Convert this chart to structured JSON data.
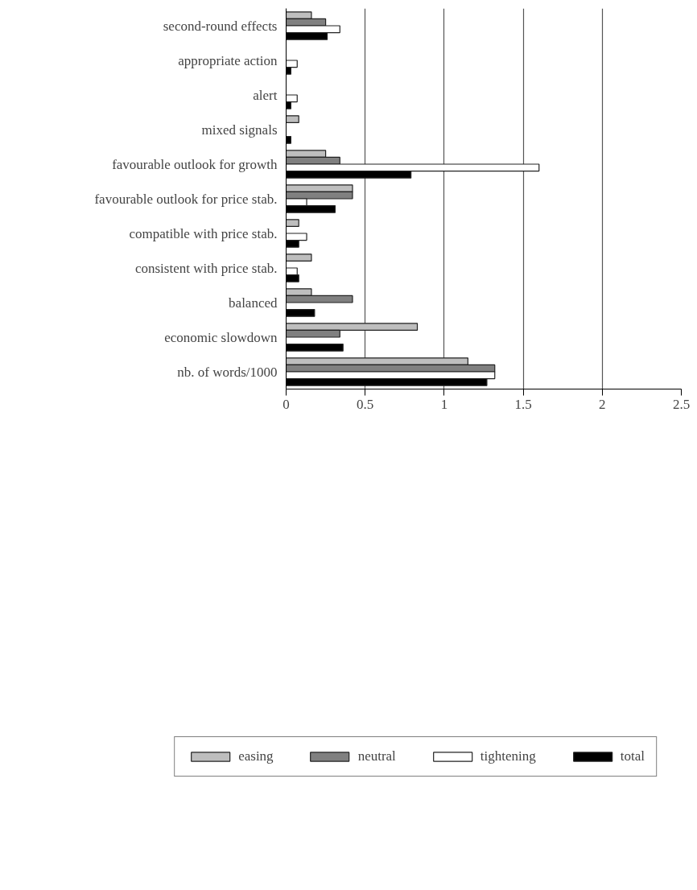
{
  "chart_data": {
    "type": "bar",
    "orientation": "horizontal",
    "categories": [
      "second-round effects",
      "appropriate action",
      "alert",
      "mixed signals",
      "favourable outlook for growth",
      "favourable outlook for price stab.",
      "compatible with price stab.",
      "consistent with price stab.",
      "balanced",
      "economic slowdown",
      "nb. of words/1000"
    ],
    "series": [
      {
        "name": "easing",
        "color": "#bebebe",
        "values": [
          0.16,
          null,
          null,
          0.08,
          0.25,
          0.42,
          0.08,
          0.16,
          0.16,
          0.83,
          1.15
        ]
      },
      {
        "name": "neutral",
        "color": "#808080",
        "values": [
          0.25,
          null,
          null,
          null,
          0.34,
          0.42,
          null,
          null,
          0.42,
          0.34,
          1.32
        ]
      },
      {
        "name": "tightening",
        "color": "#ffffff",
        "values": [
          0.34,
          0.07,
          0.07,
          null,
          1.6,
          0.13,
          0.13,
          0.07,
          null,
          null,
          1.32
        ]
      },
      {
        "name": "total",
        "color": "#000000",
        "values": [
          0.26,
          0.03,
          0.03,
          0.03,
          0.79,
          0.31,
          0.08,
          0.08,
          0.18,
          0.36,
          1.27
        ]
      }
    ],
    "xlim": [
      0,
      2.5
    ],
    "xticks": [
      0,
      0.5,
      1,
      1.5,
      2,
      2.5
    ],
    "grid": "x",
    "legend": "bottom"
  }
}
